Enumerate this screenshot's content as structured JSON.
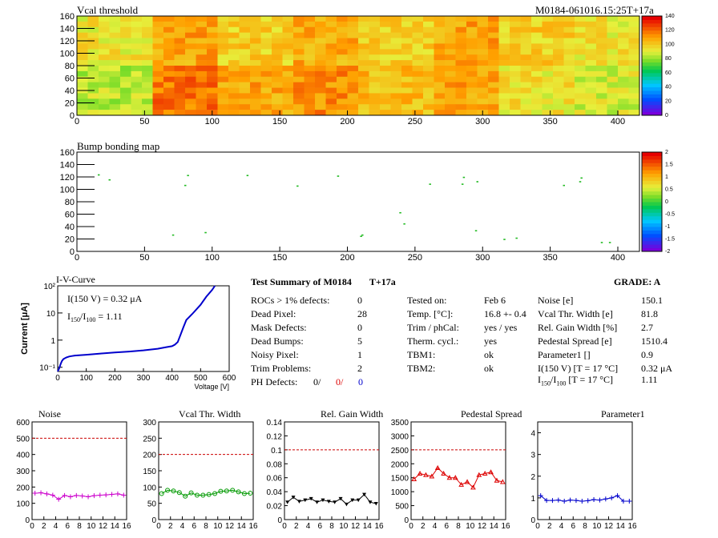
{
  "header": {
    "title": "Vcal threshold",
    "module_id": "M0184-061016.15:25T+17a"
  },
  "bump_map": {
    "title": "Bump bonding map"
  },
  "chart_data": [
    {
      "type": "heatmap",
      "title": "Vcal threshold",
      "x_ticks": [
        "0",
        "50",
        "100",
        "150",
        "200",
        "250",
        "300",
        "350",
        "400"
      ],
      "y_ticks": [
        "0",
        "20",
        "40",
        "60",
        "80",
        "100",
        "120",
        "140",
        "160"
      ],
      "xlim": [
        0,
        416
      ],
      "ylim": [
        0,
        160
      ],
      "colorbar_ticks": [
        "0",
        "20",
        "40",
        "60",
        "80",
        "100",
        "120",
        "140"
      ],
      "colorbar_range": [
        0,
        140
      ],
      "roc_grid": {
        "cols": 8,
        "rows": 2
      },
      "roc_mean_values": [
        [
          95,
          110,
          100,
          108,
          100,
          110,
          100,
          95
        ],
        [
          85,
          120,
          110,
          115,
          105,
          110,
          95,
          90
        ]
      ]
    },
    {
      "type": "scatter",
      "title": "Bump bonding map",
      "x_ticks": [
        "0",
        "50",
        "100",
        "150",
        "200",
        "250",
        "300",
        "350",
        "400"
      ],
      "y_ticks": [
        "0",
        "20",
        "40",
        "60",
        "80",
        "100",
        "120",
        "140",
        "160"
      ],
      "xlim": [
        0,
        416
      ],
      "ylim": [
        0,
        160
      ],
      "colorbar_ticks": [
        "2",
        "1.5",
        "1",
        "0.5",
        "0",
        "-0.5",
        "-1",
        "-1.5",
        "-2"
      ],
      "colorbar_range": [
        -2,
        2
      ],
      "points": [
        [
          16,
          123
        ],
        [
          24,
          115
        ],
        [
          71,
          26
        ],
        [
          80,
          106
        ],
        [
          82,
          122
        ],
        [
          95,
          30
        ],
        [
          126,
          122
        ],
        [
          163,
          105
        ],
        [
          193,
          121
        ],
        [
          210,
          24
        ],
        [
          211,
          26
        ],
        [
          239,
          62
        ],
        [
          242,
          44
        ],
        [
          261,
          108
        ],
        [
          285,
          108
        ],
        [
          286,
          119
        ],
        [
          295,
          33
        ],
        [
          296,
          112
        ],
        [
          316,
          19
        ],
        [
          325,
          21
        ],
        [
          360,
          106
        ],
        [
          372,
          112
        ],
        [
          373,
          118
        ],
        [
          388,
          14
        ],
        [
          394,
          14
        ],
        [
          419,
          2
        ]
      ]
    },
    {
      "type": "line",
      "title": "I-V-Curve",
      "ylabel": "Current [μA]",
      "xlabel": "Voltage [V]",
      "xlim": [
        0,
        600
      ],
      "ylim_log": [
        0.07,
        100
      ],
      "log_y": true,
      "x_ticks": [
        "0",
        "100",
        "200",
        "300",
        "400",
        "500",
        "600"
      ],
      "y_ticks": [
        "10⁻¹",
        "1",
        "10",
        "10²"
      ],
      "annotation1": "I(150 V) = 0.32 μA",
      "annotation2_base": "I",
      "annotation2_sub1": "150",
      "annotation2_sep": "/I",
      "annotation2_sub2": "100",
      "annotation2_value": " =  1.11",
      "x": [
        0,
        5,
        10,
        15,
        20,
        30,
        40,
        50,
        60,
        80,
        100,
        150,
        200,
        250,
        300,
        350,
        380,
        400,
        410,
        420,
        430,
        440,
        450,
        470,
        500,
        520,
        540,
        550
      ],
      "y": [
        0.07,
        0.09,
        0.13,
        0.17,
        0.2,
        0.23,
        0.25,
        0.26,
        0.27,
        0.28,
        0.29,
        0.32,
        0.35,
        0.38,
        0.42,
        0.48,
        0.55,
        0.6,
        0.68,
        0.85,
        1.6,
        3.0,
        5.5,
        9,
        20,
        40,
        70,
        100
      ]
    },
    {
      "type": "line",
      "title": "Noise",
      "xlim": [
        0,
        16
      ],
      "ylim": [
        0,
        600
      ],
      "x_ticks": [
        "0",
        "2",
        "4",
        "6",
        "8",
        "10",
        "12",
        "14",
        "16"
      ],
      "y_ticks": [
        "0",
        "100",
        "200",
        "300",
        "400",
        "500",
        "600"
      ],
      "limit": 500,
      "marker": "plus",
      "color": "#cc00cc",
      "x": [
        0,
        1,
        2,
        3,
        4,
        5,
        6,
        7,
        8,
        9,
        10,
        11,
        12,
        13,
        14,
        15
      ],
      "y": [
        162,
        165,
        158,
        150,
        125,
        148,
        140,
        148,
        145,
        140,
        147,
        150,
        152,
        155,
        158,
        150
      ]
    },
    {
      "type": "line",
      "title": "Vcal Thr. Width",
      "xlim": [
        0,
        16
      ],
      "ylim": [
        0,
        300
      ],
      "x_ticks": [
        "0",
        "2",
        "4",
        "6",
        "8",
        "10",
        "12",
        "14",
        "16"
      ],
      "y_ticks": [
        "0",
        "50",
        "100",
        "150",
        "200",
        "250",
        "300"
      ],
      "limit": 200,
      "marker": "circle",
      "color": "#009900",
      "x": [
        0,
        1,
        2,
        3,
        4,
        5,
        6,
        7,
        8,
        9,
        10,
        11,
        12,
        13,
        14,
        15
      ],
      "y": [
        80,
        90,
        88,
        83,
        72,
        82,
        75,
        75,
        77,
        80,
        87,
        88,
        90,
        85,
        80,
        81
      ]
    },
    {
      "type": "line",
      "title": "Rel. Gain Width",
      "xlim": [
        0,
        16
      ],
      "ylim": [
        0,
        0.14
      ],
      "x_ticks": [
        "0",
        "2",
        "4",
        "6",
        "8",
        "10",
        "12",
        "14",
        "16"
      ],
      "y_ticks": [
        "0",
        "0.02",
        "0.04",
        "0.06",
        "0.08",
        "0.1",
        "0.12",
        "0.14"
      ],
      "limit": 0.1,
      "marker": "triangle-down",
      "color": "#000000",
      "x": [
        0,
        1,
        2,
        3,
        4,
        5,
        6,
        7,
        8,
        9,
        10,
        11,
        12,
        13,
        14,
        15
      ],
      "y": [
        0.025,
        0.032,
        0.026,
        0.028,
        0.03,
        0.025,
        0.028,
        0.026,
        0.025,
        0.03,
        0.022,
        0.028,
        0.028,
        0.036,
        0.025,
        0.023
      ]
    },
    {
      "type": "line",
      "title": "Pedestal Spread",
      "xlim": [
        0,
        16
      ],
      "ylim": [
        0,
        3500
      ],
      "x_ticks": [
        "0",
        "2",
        "4",
        "6",
        "8",
        "10",
        "12",
        "14",
        "16"
      ],
      "y_ticks": [
        "0",
        "500",
        "1000",
        "1500",
        "2000",
        "2500",
        "3000",
        "3500"
      ],
      "limit": 2500,
      "marker": "triangle-up",
      "color": "#dd0000",
      "x": [
        0,
        1,
        2,
        3,
        4,
        5,
        6,
        7,
        8,
        9,
        10,
        11,
        12,
        13,
        14,
        15
      ],
      "y": [
        1450,
        1650,
        1600,
        1550,
        1850,
        1650,
        1500,
        1500,
        1250,
        1350,
        1150,
        1600,
        1650,
        1700,
        1400,
        1350
      ]
    },
    {
      "type": "line",
      "title": "Parameter1",
      "xlim": [
        0,
        16
      ],
      "ylim": [
        0,
        4.5
      ],
      "x_ticks": [
        "0",
        "2",
        "4",
        "6",
        "8",
        "10",
        "12",
        "14",
        "16"
      ],
      "y_ticks": [
        "0",
        "1",
        "2",
        "3",
        "4"
      ],
      "limit": null,
      "marker": "plus",
      "color": "#0000cc",
      "x": [
        0,
        1,
        2,
        3,
        4,
        5,
        6,
        7,
        8,
        9,
        10,
        11,
        12,
        13,
        14,
        15
      ],
      "y": [
        1.1,
        0.88,
        0.88,
        0.9,
        0.85,
        0.9,
        0.88,
        0.85,
        0.87,
        0.92,
        0.9,
        0.95,
        1.0,
        1.1,
        0.85,
        0.85
      ]
    }
  ],
  "summary": {
    "title": "Test Summary of M0184",
    "temp_label": "T+17a",
    "grade": "GRADE:  A",
    "col1": [
      {
        "label": "ROCs > 1% defects:",
        "value": "0"
      },
      {
        "label": "Dead Pixel:",
        "value": "28"
      },
      {
        "label": "Mask Defects:",
        "value": "0"
      },
      {
        "label": "Dead Bumps:",
        "value": "5"
      },
      {
        "label": "Noisy Pixel:",
        "value": "1"
      },
      {
        "label": "Trim Problems:",
        "value": "2"
      }
    ],
    "ph_defects": {
      "label": "PH Defects:",
      "v1": "0/",
      "v2": "0/",
      "v3": "0",
      "c1": "#000000",
      "c2": "#dd0000",
      "c3": "#0000cc"
    },
    "col2": [
      {
        "label": "Tested on:",
        "value": "Feb 6"
      },
      {
        "label": "Temp. [°C]:",
        "value": "16.8 +- 0.4"
      },
      {
        "label": "Trim / phCal:",
        "value": "yes / yes"
      },
      {
        "label": "Therm. cycl.:",
        "value": "yes"
      },
      {
        "label": "TBM1:",
        "value": "ok"
      },
      {
        "label": "TBM2:",
        "value": "ok"
      }
    ],
    "col3": [
      {
        "label": "Noise [e]",
        "value": "150.1"
      },
      {
        "label": "Vcal Thr. Width [e]",
        "value": "81.8"
      },
      {
        "label": "Rel. Gain Width [%]",
        "value": "2.7"
      },
      {
        "label": "Pedestal Spread [e]",
        "value": "1510.4"
      },
      {
        "label": "Parameter1 []",
        "value": "0.9"
      },
      {
        "label": "I(150 V) [T = 17 °C]",
        "value": "0.32 μA"
      }
    ],
    "ratio_row": {
      "pre": "I",
      "sub1": "150",
      "sep": "/I",
      "sub2": "100",
      "label": "  [T = 17 °C]",
      "value": "1.11"
    }
  }
}
